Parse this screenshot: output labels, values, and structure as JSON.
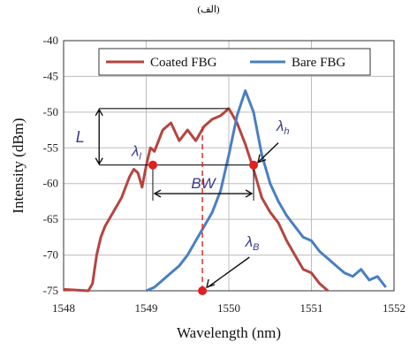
{
  "figure_label": "(الف)",
  "chart_data": {
    "type": "line",
    "xlabel": "Wavelength (nm)",
    "ylabel": "Intensity (dBm)",
    "xlim": [
      1548,
      1552
    ],
    "ylim": [
      -75,
      -40
    ],
    "x_ticks": [
      "1548",
      "1549",
      "1550",
      "1551",
      "1552"
    ],
    "y_ticks": [
      "-40",
      "-45",
      "-50",
      "-55",
      "-60",
      "-65",
      "-70",
      "-75"
    ],
    "legend_position": "top",
    "series": [
      {
        "name": "Coated FBG",
        "color": "#b5453f",
        "x": [
          1548.0,
          1548.3,
          1548.35,
          1548.4,
          1548.45,
          1548.5,
          1548.6,
          1548.7,
          1548.8,
          1548.85,
          1548.9,
          1548.95,
          1549.0,
          1549.05,
          1549.1,
          1549.15,
          1549.2,
          1549.3,
          1549.4,
          1549.5,
          1549.6,
          1549.7,
          1549.8,
          1549.9,
          1550.0,
          1550.1,
          1550.2,
          1550.3,
          1550.4,
          1550.5,
          1550.6,
          1550.7,
          1550.8,
          1550.9,
          1551.0,
          1551.1,
          1551.2
        ],
        "y": [
          -74.8,
          -75.0,
          -74.0,
          -70.0,
          -67.5,
          -66.0,
          -64.0,
          -62.0,
          -59.0,
          -58.0,
          -58.5,
          -60.5,
          -57.5,
          -55.0,
          -55.5,
          -54.0,
          -52.5,
          -51.5,
          -54.0,
          -52.5,
          -54.0,
          -52.0,
          -51.0,
          -50.5,
          -49.5,
          -51.5,
          -54.5,
          -58.0,
          -62.0,
          -64.0,
          -65.5,
          -68.0,
          -70.0,
          -72.0,
          -72.5,
          -74.0,
          -75.0
        ]
      },
      {
        "name": "Bare FBG",
        "color": "#4a7fc1",
        "x": [
          1549.0,
          1549.1,
          1549.2,
          1549.3,
          1549.4,
          1549.5,
          1549.6,
          1549.7,
          1549.8,
          1549.9,
          1550.0,
          1550.1,
          1550.2,
          1550.3,
          1550.4,
          1550.5,
          1550.6,
          1550.7,
          1550.8,
          1550.9,
          1551.0,
          1551.1,
          1551.2,
          1551.3,
          1551.4,
          1551.5,
          1551.6,
          1551.7,
          1551.8,
          1551.9
        ],
        "y": [
          -75.0,
          -74.5,
          -73.5,
          -72.5,
          -71.5,
          -70.0,
          -68.0,
          -66.0,
          -64.0,
          -61.0,
          -56.0,
          -50.5,
          -47.0,
          -50.0,
          -56.0,
          -60.0,
          -62.5,
          -64.5,
          -66.0,
          -67.5,
          -68.0,
          -69.5,
          -70.5,
          -71.5,
          -72.5,
          -73.0,
          -72.0,
          -73.5,
          -73.0,
          -74.5
        ]
      }
    ],
    "annotations": {
      "L_label": "L",
      "BW_label": "BW",
      "lambda_l": {
        "label": "λl",
        "x": 1549.08,
        "y": -57.4
      },
      "lambda_h": {
        "label": "λh",
        "x": 1550.3,
        "y": -57.4
      },
      "lambda_B": {
        "label": "λB",
        "x": 1549.68,
        "y": -75.0
      },
      "peak_level": -49.5,
      "half_level": -57.4
    }
  }
}
